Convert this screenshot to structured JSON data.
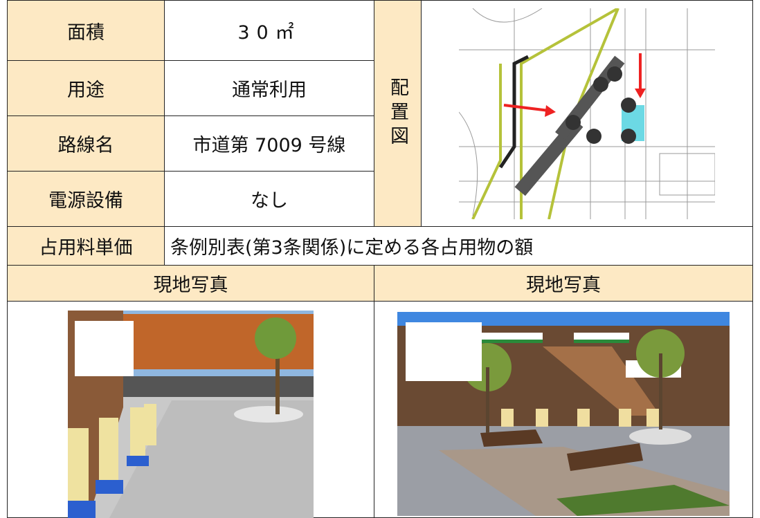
{
  "table": {
    "rows": [
      {
        "label": "面積",
        "value": "30㎡"
      },
      {
        "label": "用途",
        "value": "通常利用"
      },
      {
        "label": "路線名",
        "value": "市道第 7009 号線"
      },
      {
        "label": "電源設備",
        "value": "なし"
      }
    ],
    "layout_label": "配置図",
    "fee": {
      "label": "占用料単価",
      "value": "条例別表(第3条関係)に定める各占用物の額"
    },
    "photo_headers": [
      "現地写真",
      "現地写真"
    ]
  }
}
